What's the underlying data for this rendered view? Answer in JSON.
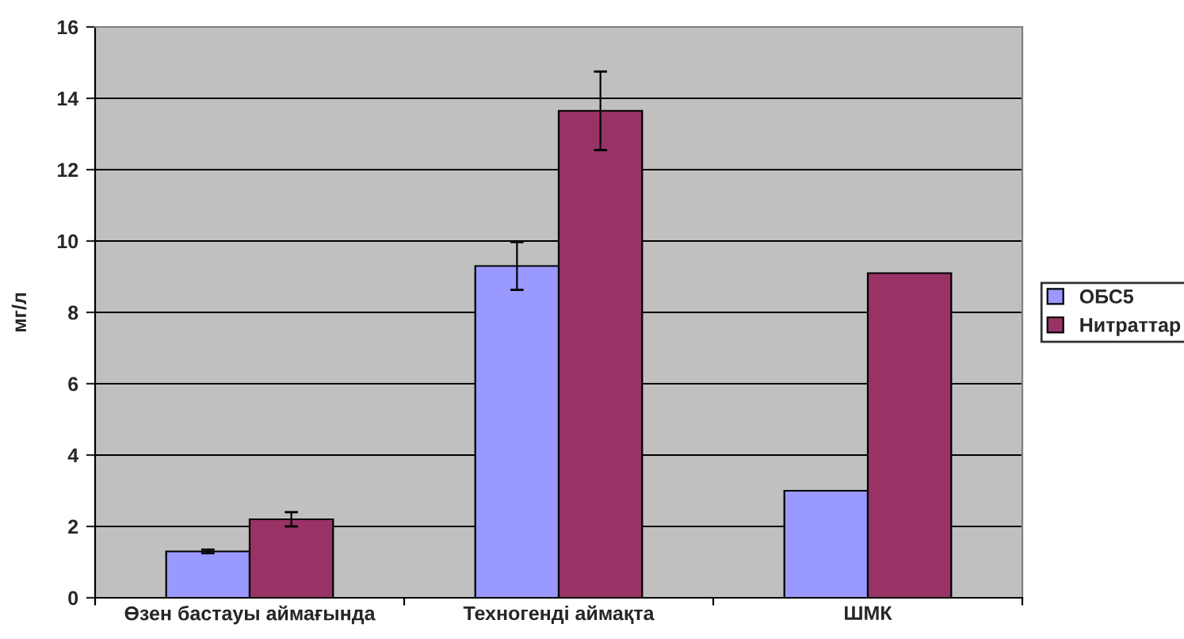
{
  "chart_data": {
    "type": "bar",
    "ylabel": "мг/л",
    "categories": [
      "Өзен бастауы аймағында",
      "Техногенді аймақта",
      "ШМК"
    ],
    "series": [
      {
        "name": "ОБС5",
        "color": "#9999ff",
        "values": [
          1.3,
          9.3,
          3.0
        ],
        "errors": [
          0.05,
          0.67,
          null
        ]
      },
      {
        "name": "Нитраттар",
        "color": "#993366",
        "values": [
          2.2,
          13.65,
          9.1
        ],
        "errors": [
          0.2,
          1.1,
          null
        ]
      }
    ],
    "ylim": [
      0,
      16
    ],
    "yticks": [
      0,
      2,
      4,
      6,
      8,
      10,
      12,
      14,
      16
    ],
    "grid": "y",
    "legend": "right"
  }
}
